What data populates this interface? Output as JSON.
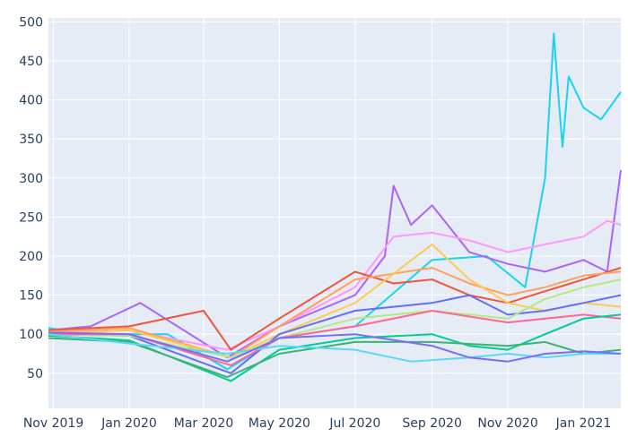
{
  "chart_data": {
    "type": "line",
    "title": "",
    "xlabel": "",
    "ylabel": "",
    "ylim": [
      5,
      505
    ],
    "xlim": [
      "2019-10-28",
      "2021-01-31"
    ],
    "grid": true,
    "legend": "none",
    "background": "#e5ecf6",
    "y_ticks": [
      50,
      100,
      150,
      200,
      250,
      300,
      350,
      400,
      450,
      500
    ],
    "x_ticks": [
      {
        "date": "2019-11-01",
        "label": "Nov 2019"
      },
      {
        "date": "2020-01-01",
        "label": "Jan 2020"
      },
      {
        "date": "2020-03-01",
        "label": "Mar 2020"
      },
      {
        "date": "2020-05-01",
        "label": "May 2020"
      },
      {
        "date": "2020-07-01",
        "label": "Jul 2020"
      },
      {
        "date": "2020-09-01",
        "label": "Sep 2020"
      },
      {
        "date": "2020-11-01",
        "label": "Nov 2020"
      },
      {
        "date": "2021-01-01",
        "label": "Jan 2021"
      }
    ],
    "series": [
      {
        "color": "#19d3f3",
        "x": [
          "2019-10-28",
          "2019-12-01",
          "2020-02-01",
          "2020-03-20",
          "2020-05-01",
          "2020-07-01",
          "2020-09-01",
          "2020-10-15",
          "2020-11-15",
          "2020-12-01",
          "2020-12-08",
          "2020-12-12",
          "2020-12-15",
          "2020-12-20",
          "2021-01-01",
          "2021-01-15",
          "2021-01-31"
        ],
        "values": [
          108,
          100,
          100,
          55,
          95,
          110,
          195,
          200,
          160,
          300,
          485,
          400,
          340,
          430,
          390,
          375,
          410
        ]
      },
      {
        "color": "#ab63fa",
        "x": [
          "2019-10-28",
          "2019-12-01",
          "2020-01-10",
          "2020-03-20",
          "2020-05-01",
          "2020-07-01",
          "2020-07-25",
          "2020-08-01",
          "2020-08-15",
          "2020-09-01",
          "2020-10-01",
          "2020-11-01",
          "2020-12-01",
          "2021-01-01",
          "2021-01-20",
          "2021-01-31"
        ],
        "values": [
          105,
          110,
          140,
          70,
          110,
          150,
          200,
          290,
          240,
          265,
          205,
          190,
          180,
          195,
          180,
          310
        ]
      },
      {
        "color": "#ff97ff",
        "x": [
          "2019-10-28",
          "2020-01-01",
          "2020-03-20",
          "2020-05-01",
          "2020-07-01",
          "2020-08-01",
          "2020-09-01",
          "2020-10-01",
          "2020-11-01",
          "2020-12-01",
          "2021-01-01",
          "2021-01-20",
          "2021-01-31"
        ],
        "values": [
          102,
          105,
          80,
          110,
          160,
          225,
          230,
          220,
          205,
          215,
          225,
          245,
          240
        ]
      },
      {
        "color": "#ef553b",
        "x": [
          "2019-10-28",
          "2020-01-01",
          "2020-03-01",
          "2020-03-23",
          "2020-05-01",
          "2020-07-01",
          "2020-08-01",
          "2020-09-01",
          "2020-10-01",
          "2020-11-01",
          "2020-12-01",
          "2021-01-01",
          "2021-01-31"
        ],
        "values": [
          105,
          110,
          130,
          80,
          120,
          180,
          165,
          170,
          150,
          140,
          155,
          170,
          185
        ]
      },
      {
        "color": "#ffa15a",
        "x": [
          "2019-10-28",
          "2020-01-01",
          "2020-03-23",
          "2020-05-01",
          "2020-07-01",
          "2020-09-01",
          "2020-10-01",
          "2020-11-01",
          "2020-12-01",
          "2021-01-01",
          "2021-01-31"
        ],
        "values": [
          103,
          108,
          70,
          110,
          170,
          185,
          165,
          150,
          160,
          175,
          180
        ]
      },
      {
        "color": "#fecb52",
        "x": [
          "2019-10-28",
          "2020-01-01",
          "2020-03-23",
          "2020-05-01",
          "2020-07-01",
          "2020-09-01",
          "2020-10-01",
          "2020-11-01",
          "2020-12-01",
          "2021-01-01",
          "2021-01-31"
        ],
        "values": [
          100,
          105,
          70,
          100,
          140,
          215,
          170,
          140,
          130,
          140,
          135
        ]
      },
      {
        "color": "#636efa",
        "x": [
          "2019-10-28",
          "2020-01-01",
          "2020-03-23",
          "2020-05-01",
          "2020-07-01",
          "2020-09-01",
          "2020-10-01",
          "2020-11-01",
          "2020-12-01",
          "2021-01-01",
          "2021-01-31"
        ],
        "values": [
          100,
          98,
          50,
          100,
          130,
          140,
          150,
          125,
          130,
          140,
          150
        ]
      },
      {
        "color": "#b6e880",
        "x": [
          "2019-10-28",
          "2020-01-01",
          "2020-03-23",
          "2020-05-01",
          "2020-07-01",
          "2020-09-01",
          "2020-11-01",
          "2020-12-01",
          "2021-01-01",
          "2021-01-31"
        ],
        "values": [
          100,
          98,
          70,
          95,
          120,
          130,
          120,
          145,
          160,
          170
        ]
      },
      {
        "color": "#ff6692",
        "x": [
          "2019-10-28",
          "2020-01-01",
          "2020-03-23",
          "2020-05-01",
          "2020-07-01",
          "2020-09-01",
          "2020-11-01",
          "2020-12-01",
          "2021-01-01",
          "2021-01-31"
        ],
        "values": [
          100,
          100,
          60,
          95,
          110,
          130,
          115,
          120,
          125,
          120
        ]
      },
      {
        "color": "#00cc96",
        "x": [
          "2019-10-28",
          "2020-01-01",
          "2020-03-23",
          "2020-05-01",
          "2020-07-01",
          "2020-09-01",
          "2020-10-01",
          "2020-11-01",
          "2020-12-01",
          "2021-01-01",
          "2021-01-31"
        ],
        "values": [
          98,
          92,
          40,
          80,
          95,
          100,
          85,
          80,
          100,
          120,
          125
        ]
      },
      {
        "color": "#3cb371",
        "x": [
          "2019-10-28",
          "2020-01-01",
          "2020-03-20",
          "2020-05-01",
          "2020-07-01",
          "2020-09-01",
          "2020-11-01",
          "2020-12-01",
          "2021-01-01",
          "2021-01-31"
        ],
        "values": [
          95,
          90,
          45,
          75,
          90,
          90,
          85,
          90,
          75,
          80
        ]
      },
      {
        "color": "#5ad8f5",
        "x": [
          "2019-10-28",
          "2020-01-01",
          "2020-03-20",
          "2020-05-01",
          "2020-07-01",
          "2020-08-15",
          "2020-10-01",
          "2020-11-01",
          "2020-12-01",
          "2021-01-01",
          "2021-01-31"
        ],
        "values": [
          100,
          88,
          75,
          85,
          80,
          65,
          70,
          75,
          70,
          75,
          75
        ]
      },
      {
        "color": "#7b6cf5",
        "x": [
          "2019-10-28",
          "2020-01-01",
          "2020-03-20",
          "2020-05-01",
          "2020-07-01",
          "2020-09-01",
          "2020-10-01",
          "2020-11-01",
          "2020-12-01",
          "2021-01-01",
          "2021-01-31"
        ],
        "values": [
          102,
          100,
          65,
          95,
          100,
          85,
          70,
          65,
          75,
          78,
          75
        ]
      }
    ]
  }
}
